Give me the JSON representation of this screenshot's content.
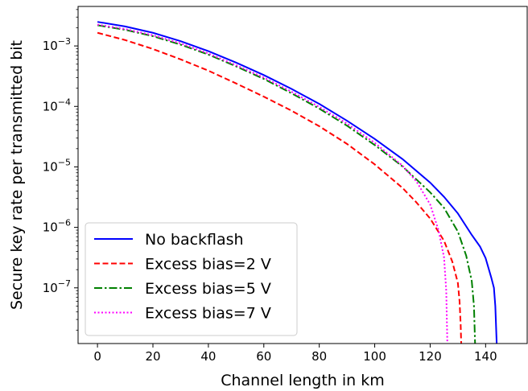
{
  "chart_data": {
    "type": "line",
    "title": "",
    "xlabel": "Channel length in km",
    "ylabel": "Secure key rate per transmitted bit",
    "xscale": "linear",
    "yscale": "log",
    "xlim": [
      -7,
      155
    ],
    "ylim": [
      1.2e-08,
      0.0045
    ],
    "xticks": [
      0,
      20,
      40,
      60,
      80,
      100,
      120,
      140
    ],
    "xtick_labels": [
      "0",
      "20",
      "40",
      "60",
      "80",
      "100",
      "120",
      "140"
    ],
    "yticks": [
      1e-07,
      1e-06,
      1e-05,
      0.0001,
      0.001
    ],
    "ytick_labels": [
      {
        "base": "10",
        "exp": "−7"
      },
      {
        "base": "10",
        "exp": "−6"
      },
      {
        "base": "10",
        "exp": "−5"
      },
      {
        "base": "10",
        "exp": "−4"
      },
      {
        "base": "10",
        "exp": "−3"
      }
    ],
    "grid": false,
    "legend_position": "lower-left",
    "series": [
      {
        "name": "No backflash",
        "color": "#0000ff",
        "dash": "solid",
        "x": [
          0,
          10,
          20,
          30,
          40,
          50,
          60,
          70,
          80,
          90,
          100,
          110,
          120,
          125,
          130,
          135,
          138,
          140,
          142,
          143,
          143.5,
          144
        ],
        "y": [
          0.0025,
          0.0021,
          0.00165,
          0.0012,
          0.00082,
          0.00053,
          0.00033,
          0.000195,
          0.00011,
          5.8e-05,
          2.9e-05,
          1.35e-05,
          5.5e-06,
          3.2e-06,
          1.7e-06,
          7.5e-07,
          4.8e-07,
          3.1e-07,
          1.5e-07,
          1e-07,
          5e-08,
          1.2e-08
        ]
      },
      {
        "name": "Excess bias=2 V",
        "color": "#ff0000",
        "dash": "dashed",
        "x": [
          0,
          10,
          20,
          30,
          40,
          50,
          60,
          70,
          80,
          90,
          100,
          110,
          115,
          120,
          125,
          128,
          130,
          130.6,
          131,
          131.2
        ],
        "y": [
          0.00165,
          0.00125,
          0.00089,
          0.0006,
          0.00039,
          0.00024,
          0.000145,
          8.5e-05,
          4.7e-05,
          2.4e-05,
          1.1e-05,
          4.5e-06,
          2.6e-06,
          1.4e-06,
          6e-07,
          2.7e-07,
          1.2e-07,
          6e-08,
          2.5e-08,
          1.2e-08
        ]
      },
      {
        "name": "Excess bias=5 V",
        "color": "#008000",
        "dash": "dashdot",
        "x": [
          0,
          10,
          20,
          30,
          40,
          50,
          60,
          70,
          80,
          90,
          100,
          110,
          120,
          125,
          130,
          133,
          135,
          135.8,
          136.2
        ],
        "y": [
          0.0022,
          0.00185,
          0.00145,
          0.00105,
          0.00072,
          0.00046,
          0.000285,
          0.000165,
          9.2e-05,
          4.8e-05,
          2.3e-05,
          1.02e-05,
          3.8e-06,
          2.1e-06,
          8.5e-07,
          3.4e-07,
          1.3e-07,
          5e-08,
          1.2e-08
        ]
      },
      {
        "name": "Excess bias=7 V",
        "color": "#ff00ff",
        "dash": "dotted",
        "x": [
          0,
          10,
          20,
          30,
          40,
          50,
          60,
          70,
          80,
          90,
          100,
          110,
          115,
          120,
          123,
          125,
          125.8,
          126.2
        ],
        "y": [
          0.00225,
          0.0019,
          0.0015,
          0.0011,
          0.00075,
          0.00048,
          0.0003,
          0.000175,
          9.8e-05,
          5.2e-05,
          2.5e-05,
          1.05e-05,
          5.8e-06,
          2.4e-06,
          9e-07,
          3.2e-07,
          9e-08,
          1.2e-08
        ]
      }
    ]
  }
}
